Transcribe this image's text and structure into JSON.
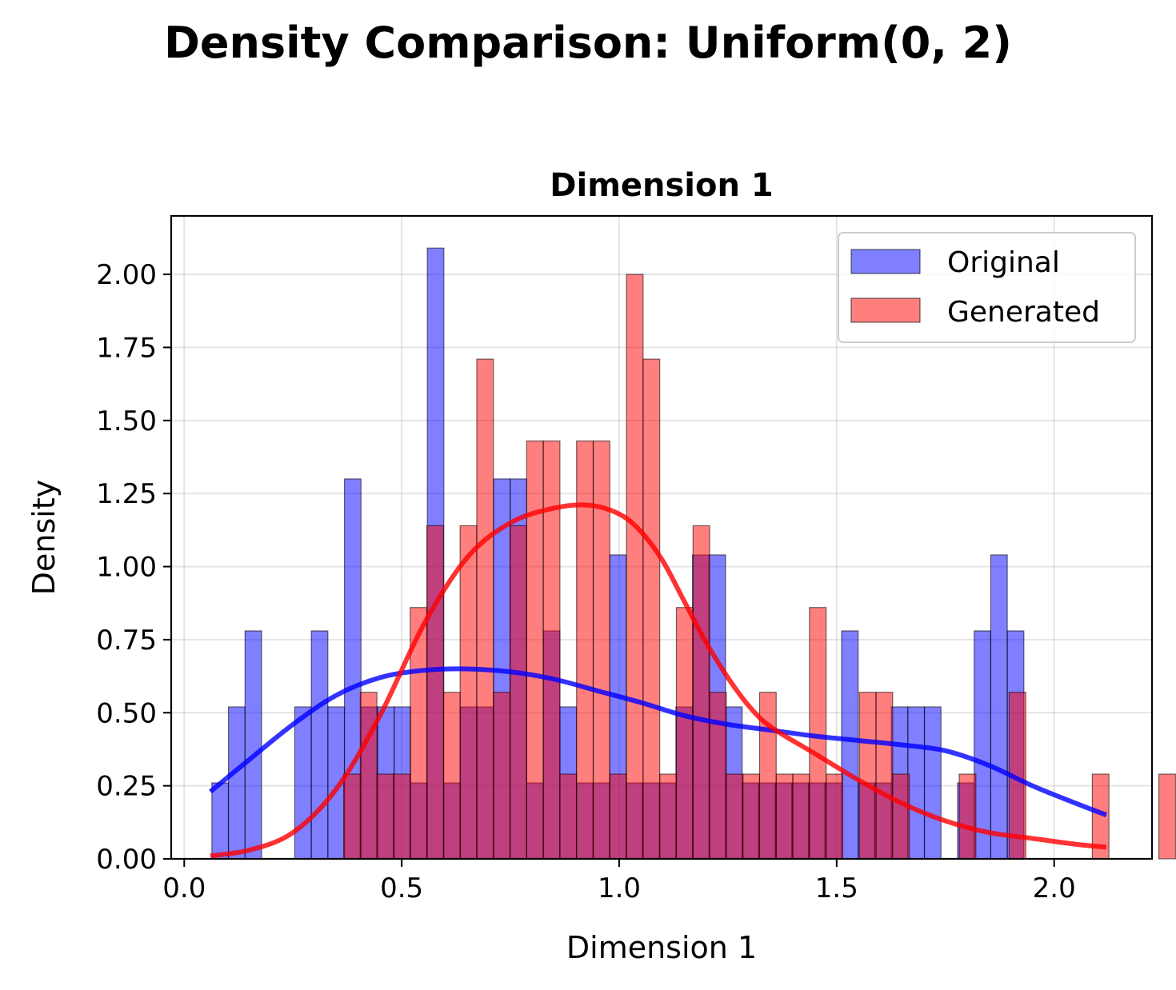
{
  "title": "Density Comparison: Uniform(0, 2)",
  "chart_data": {
    "type": "bar",
    "subtitle": "Dimension 1",
    "xlabel": "Dimension 1",
    "ylabel": "Density",
    "xlim": [
      -0.03,
      2.225
    ],
    "ylim": [
      0,
      2.2
    ],
    "xticks": [
      0.0,
      0.5,
      1.0,
      1.5,
      2.0
    ],
    "xtick_labels": [
      "0.0",
      "0.5",
      "1.0",
      "1.5",
      "2.0"
    ],
    "yticks": [
      0,
      0.25,
      0.5,
      0.75,
      1.0,
      1.25,
      1.5,
      1.75,
      2.0
    ],
    "ytick_labels": [
      "0.00",
      "0.25",
      "0.50",
      "0.75",
      "1.00",
      "1.25",
      "1.50",
      "1.75",
      "2.00"
    ],
    "grid": true,
    "legend_position": "top-right",
    "series": [
      {
        "name": "Original",
        "kind": "histogram",
        "color": "#0000ff",
        "bin_start": 0.0635,
        "bin_width": 0.0381,
        "values": [
          0.26,
          0.52,
          0.78,
          0,
          0,
          0.52,
          0.78,
          0.52,
          1.3,
          0.52,
          0.52,
          0.52,
          0.26,
          2.09,
          0.26,
          0.52,
          0.52,
          1.3,
          1.3,
          0.26,
          0.78,
          0.52,
          0.26,
          0.26,
          1.04,
          0.26,
          0.26,
          0.26,
          0.52,
          1.04,
          1.04,
          0.52,
          0.26,
          0.26,
          0.26,
          0.26,
          0.26,
          0.26,
          0.78,
          0.26,
          0.26,
          0.52,
          0.52,
          0.52,
          0,
          0.26,
          0.78,
          1.04,
          0.78
        ]
      },
      {
        "name": "Generated",
        "kind": "histogram",
        "color": "#ff0000",
        "bin_start": 0.3665,
        "bin_width": 0.03825,
        "values": [
          0.29,
          0.57,
          0.29,
          0.29,
          0.86,
          1.14,
          0.57,
          1.14,
          1.71,
          0.57,
          1.14,
          1.43,
          1.43,
          0.29,
          1.43,
          1.43,
          0.29,
          2.0,
          1.71,
          0.29,
          0.86,
          1.14,
          0.57,
          0.29,
          0.29,
          0.57,
          0.29,
          0.29,
          0.86,
          0.29,
          0,
          0.57,
          0.57,
          0.29,
          0,
          0,
          0,
          0.29,
          0,
          0,
          0.57,
          0,
          0,
          0,
          0,
          0.29,
          0,
          0,
          0,
          0.29
        ]
      }
    ],
    "kde": [
      {
        "name": "Original",
        "color": "#0000ff",
        "x": [
          0.06,
          0.15,
          0.25,
          0.35,
          0.45,
          0.55,
          0.65,
          0.75,
          0.85,
          0.95,
          1.05,
          1.15,
          1.25,
          1.35,
          1.45,
          1.55,
          1.65,
          1.75,
          1.85,
          1.95,
          2.05,
          2.12
        ],
        "y": [
          0.23,
          0.34,
          0.46,
          0.56,
          0.62,
          0.645,
          0.65,
          0.64,
          0.615,
          0.575,
          0.535,
          0.49,
          0.46,
          0.44,
          0.42,
          0.405,
          0.39,
          0.37,
          0.32,
          0.25,
          0.19,
          0.15
        ]
      },
      {
        "name": "Generated",
        "color": "#ff0000",
        "x": [
          0.06,
          0.15,
          0.25,
          0.35,
          0.45,
          0.55,
          0.65,
          0.75,
          0.85,
          0.93,
          1.0,
          1.05,
          1.1,
          1.15,
          1.2,
          1.25,
          1.3,
          1.35,
          1.45,
          1.55,
          1.65,
          1.75,
          1.85,
          1.95,
          2.05,
          2.12
        ],
        "y": [
          0.01,
          0.03,
          0.09,
          0.24,
          0.49,
          0.8,
          1.03,
          1.15,
          1.2,
          1.21,
          1.18,
          1.12,
          1.02,
          0.88,
          0.74,
          0.62,
          0.52,
          0.45,
          0.36,
          0.27,
          0.19,
          0.13,
          0.09,
          0.07,
          0.05,
          0.04
        ]
      }
    ]
  }
}
